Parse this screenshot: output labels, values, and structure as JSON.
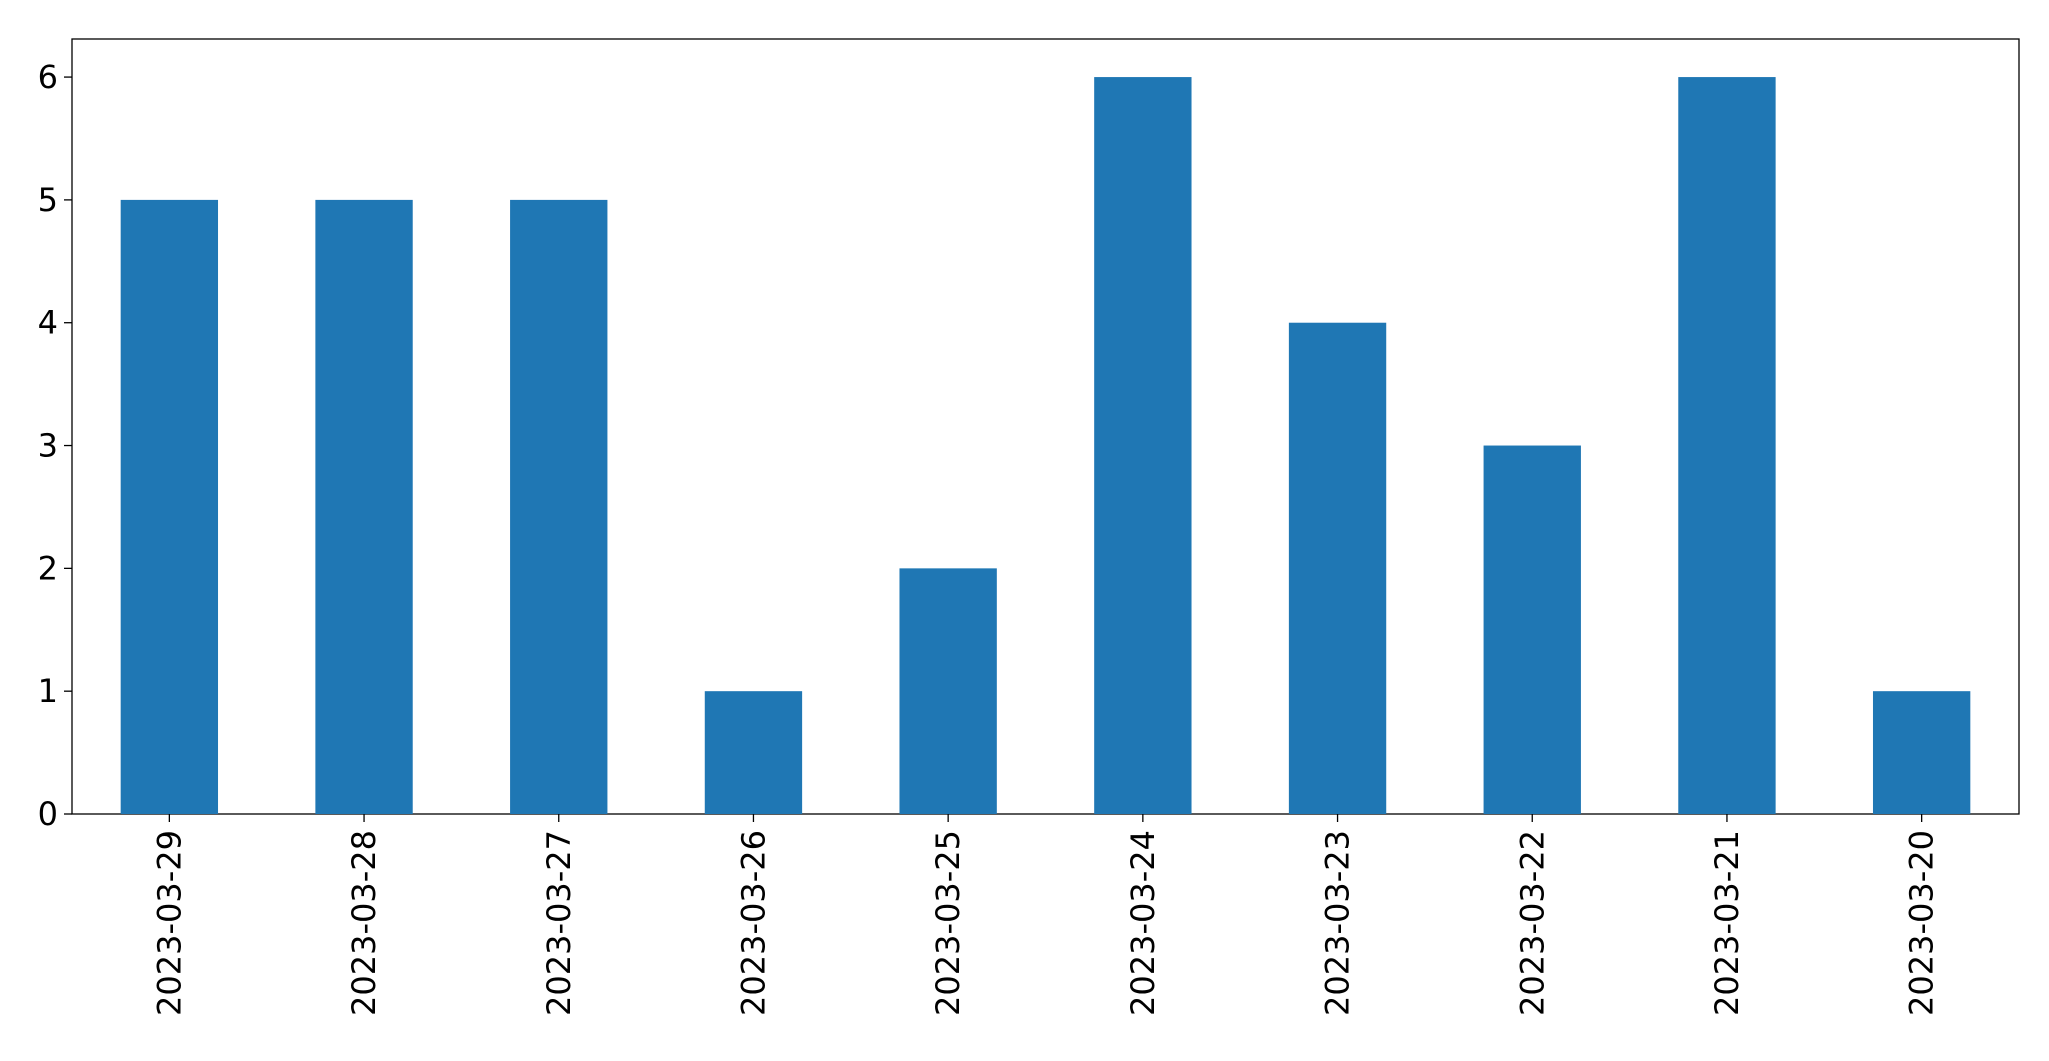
{
  "chart_data": {
    "type": "bar",
    "categories": [
      "2023-03-29",
      "2023-03-28",
      "2023-03-27",
      "2023-03-26",
      "2023-03-25",
      "2023-03-24",
      "2023-03-23",
      "2023-03-22",
      "2023-03-21",
      "2023-03-20"
    ],
    "values": [
      5,
      5,
      5,
      1,
      2,
      6,
      4,
      3,
      6,
      1
    ],
    "color": "#1f77b4",
    "ylim": [
      0,
      6.31
    ],
    "yticks": [
      0,
      1,
      2,
      3,
      4,
      5,
      6
    ],
    "grid": false
  }
}
